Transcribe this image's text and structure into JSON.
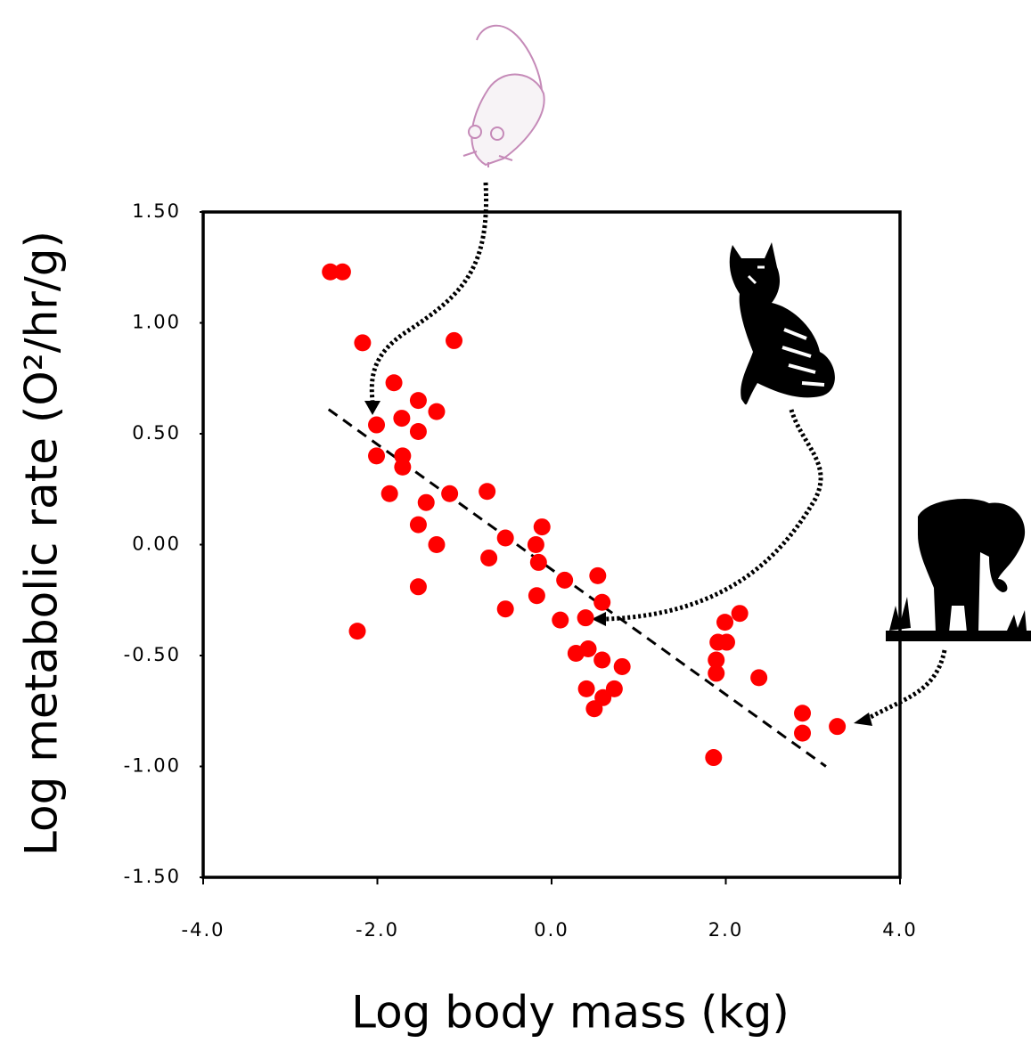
{
  "chart_data": {
    "type": "scatter",
    "xlabel": "Log body mass (kg)",
    "ylabel": "Log metabolic rate (O²/hr/g)",
    "xlim": [
      -4,
      4
    ],
    "ylim": [
      -1.5,
      1.5
    ],
    "xticks": [
      {
        "value": -4,
        "label": "-4.0"
      },
      {
        "value": -2,
        "label": "-2.0"
      },
      {
        "value": 0,
        "label": "0.0"
      },
      {
        "value": 2,
        "label": "2.0"
      },
      {
        "value": 4,
        "label": "4.0"
      }
    ],
    "yticks": [
      {
        "value": 1.5,
        "label": "1.50"
      },
      {
        "value": 1,
        "label": "1.00"
      },
      {
        "value": 0.5,
        "label": "0.50"
      },
      {
        "value": 0,
        "label": "0.00"
      },
      {
        "value": -0.5,
        "label": "-0.50"
      },
      {
        "value": -1,
        "label": "-1.00"
      },
      {
        "value": -1.5,
        "label": "-1.50"
      }
    ],
    "color": "#ff0000",
    "x": [
      -2.54,
      -2.4,
      -2.17,
      -1.12,
      -1.81,
      -1.53,
      -1.32,
      -1.72,
      -1.53,
      -2.01,
      -2.01,
      -1.71,
      -1.71,
      -1.86,
      -1.17,
      -0.74,
      -1.44,
      -1.53,
      -1.32,
      -0.11,
      -0.53,
      -0.18,
      -0.15,
      -0.72,
      -1.53,
      -2.23,
      0.15,
      0.53,
      -0.17,
      -0.53,
      0.58,
      0.1,
      0.39,
      0.42,
      0.28,
      0.58,
      0.81,
      0.4,
      0.72,
      0.59,
      0.49,
      2.16,
      1.99,
      1.91,
      2.01,
      1.89,
      1.89,
      2.38,
      2.88,
      2.88,
      3.28,
      1.86
    ],
    "y": [
      1.23,
      1.23,
      0.91,
      0.92,
      0.73,
      0.65,
      0.6,
      0.57,
      0.51,
      0.54,
      0.4,
      0.4,
      0.35,
      0.23,
      0.23,
      0.24,
      0.19,
      0.09,
      0.0,
      0.08,
      0.03,
      0.0,
      -0.08,
      -0.06,
      -0.19,
      -0.39,
      -0.16,
      -0.14,
      -0.23,
      -0.29,
      -0.26,
      -0.34,
      -0.33,
      -0.47,
      -0.49,
      -0.52,
      -0.55,
      -0.65,
      -0.65,
      -0.69,
      -0.74,
      -0.31,
      -0.35,
      -0.44,
      -0.44,
      -0.52,
      -0.58,
      -0.6,
      -0.76,
      -0.85,
      -0.82,
      -0.96
    ],
    "trendline": {
      "x": [
        -2.56,
        3.15
      ],
      "y": [
        0.61,
        -1.0
      ]
    }
  }
}
